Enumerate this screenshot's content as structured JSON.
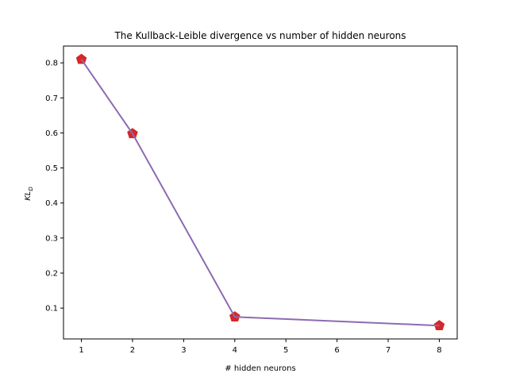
{
  "chart_data": {
    "type": "line",
    "title": "The Kullback-Leible divergence vs number of hidden neurons",
    "xlabel": "# hidden neurons",
    "ylabel_main": "KL",
    "ylabel_sub": "D",
    "xlim": [
      0.65,
      8.35
    ],
    "ylim": [
      0.012,
      0.848
    ],
    "xticks": [
      1,
      2,
      3,
      4,
      5,
      6,
      7,
      8
    ],
    "yticks": [
      0.1,
      0.2,
      0.3,
      0.4,
      0.5,
      0.6,
      0.7,
      0.8
    ],
    "ytick_labels": [
      "0.1",
      "0.2",
      "0.3",
      "0.4",
      "0.5",
      "0.6",
      "0.7",
      "0.8"
    ],
    "grid": false,
    "series": [
      {
        "name": "KL divergence",
        "x": [
          1,
          2,
          4,
          8
        ],
        "values": [
          0.81,
          0.598,
          0.075,
          0.05
        ],
        "line_color": "#8c6bb1",
        "marker": "pentagon",
        "marker_color": "#d62728"
      }
    ]
  }
}
